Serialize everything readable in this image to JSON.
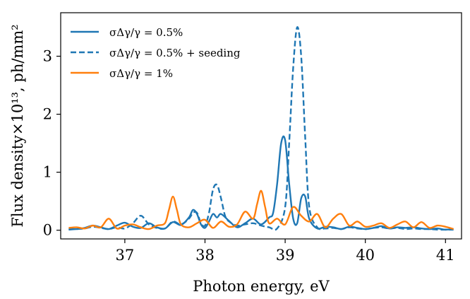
{
  "chart_data": {
    "type": "line",
    "title": "",
    "xlabel": "Photon energy, eV",
    "ylabel": "Flux density×10¹³, ph/mm²",
    "xlim": [
      36.2,
      41.2
    ],
    "ylim": [
      -0.15,
      3.75
    ],
    "xticks": [
      37,
      38,
      39,
      40,
      41
    ],
    "yticks": [
      0,
      1,
      2,
      3
    ],
    "xtick_labels": [
      "37",
      "38",
      "39",
      "40",
      "41"
    ],
    "ytick_labels": [
      "0",
      "1",
      "2",
      "3"
    ],
    "grid": false,
    "legend_position": "top-left",
    "series": [
      {
        "name": "σΔγ/γ = 0.5%",
        "color": "#1f77b4",
        "style": "solid",
        "x": [
          36.3,
          36.4,
          36.5,
          36.6,
          36.7,
          36.8,
          36.9,
          37.0,
          37.1,
          37.2,
          37.3,
          37.4,
          37.5,
          37.6,
          37.7,
          37.8,
          37.85,
          37.9,
          37.95,
          38.0,
          38.05,
          38.1,
          38.15,
          38.2,
          38.3,
          38.4,
          38.5,
          38.6,
          38.7,
          38.8,
          38.85,
          38.9,
          38.95,
          39.0,
          39.05,
          39.1,
          39.15,
          39.2,
          39.25,
          39.3,
          39.4,
          39.5,
          39.6,
          39.7,
          39.8,
          39.9,
          40.0,
          40.1,
          40.2,
          40.3,
          40.4,
          40.5,
          40.6,
          40.7,
          40.8,
          40.9,
          41.0,
          41.1
        ],
        "y": [
          0.02,
          0.02,
          0.04,
          0.08,
          0.05,
          0.02,
          0.08,
          0.13,
          0.06,
          0.04,
          0.12,
          0.05,
          0.03,
          0.14,
          0.09,
          0.22,
          0.35,
          0.28,
          0.1,
          0.04,
          0.15,
          0.28,
          0.22,
          0.28,
          0.16,
          0.05,
          0.12,
          0.2,
          0.1,
          0.22,
          0.3,
          0.8,
          1.5,
          1.55,
          0.8,
          0.2,
          0.12,
          0.55,
          0.58,
          0.2,
          0.03,
          0.06,
          0.05,
          0.02,
          0.06,
          0.04,
          0.02,
          0.04,
          0.07,
          0.03,
          0.05,
          0.04,
          0.05,
          0.03,
          0.02,
          0.03,
          0.01,
          0.02
        ]
      },
      {
        "name": "σΔγ/γ = 0.5% + seeding",
        "color": "#1f77b4",
        "style": "dashed",
        "x": [
          36.3,
          36.4,
          36.5,
          36.6,
          36.7,
          36.8,
          36.9,
          37.0,
          37.1,
          37.2,
          37.3,
          37.4,
          37.5,
          37.6,
          37.7,
          37.8,
          37.85,
          37.9,
          37.95,
          38.0,
          38.05,
          38.1,
          38.15,
          38.2,
          38.25,
          38.3,
          38.4,
          38.5,
          38.6,
          38.7,
          38.8,
          38.9,
          39.0,
          39.05,
          39.1,
          39.15,
          39.2,
          39.25,
          39.3,
          39.4,
          39.5,
          39.6,
          39.7,
          39.8,
          39.9,
          40.0,
          40.1,
          40.2,
          40.3,
          40.4,
          40.5,
          40.6,
          40.7,
          40.8,
          40.9,
          41.0,
          41.1
        ],
        "y": [
          0.01,
          0.02,
          0.03,
          0.06,
          0.04,
          0.02,
          0.05,
          0.03,
          0.12,
          0.25,
          0.1,
          0.04,
          0.03,
          0.15,
          0.1,
          0.2,
          0.3,
          0.3,
          0.12,
          0.08,
          0.3,
          0.7,
          0.78,
          0.55,
          0.25,
          0.15,
          0.08,
          0.1,
          0.12,
          0.08,
          0.05,
          0.03,
          0.4,
          1.5,
          2.8,
          3.5,
          3.0,
          1.6,
          0.4,
          0.05,
          0.03,
          0.04,
          0.02,
          0.05,
          0.03,
          0.02,
          0.04,
          0.05,
          0.03,
          0.04,
          0.02,
          0.03,
          0.02,
          0.02,
          0.01,
          0.01,
          0.01
        ]
      },
      {
        "name": "σΔγ/γ = 1%",
        "color": "#ff7f0e",
        "style": "solid",
        "x": [
          36.3,
          36.4,
          36.5,
          36.6,
          36.7,
          36.8,
          36.9,
          37.0,
          37.1,
          37.2,
          37.3,
          37.4,
          37.5,
          37.55,
          37.6,
          37.65,
          37.7,
          37.8,
          37.9,
          38.0,
          38.1,
          38.2,
          38.3,
          38.4,
          38.5,
          38.6,
          38.65,
          38.7,
          38.75,
          38.8,
          38.9,
          39.0,
          39.1,
          39.2,
          39.3,
          39.4,
          39.5,
          39.6,
          39.7,
          39.8,
          39.9,
          40.0,
          40.1,
          40.2,
          40.3,
          40.4,
          40.5,
          40.6,
          40.7,
          40.8,
          40.9,
          41.0,
          41.1
        ],
        "y": [
          0.04,
          0.05,
          0.03,
          0.08,
          0.05,
          0.2,
          0.03,
          0.08,
          0.1,
          0.05,
          0.02,
          0.08,
          0.12,
          0.35,
          0.58,
          0.35,
          0.1,
          0.05,
          0.12,
          0.18,
          0.04,
          0.15,
          0.06,
          0.1,
          0.32,
          0.2,
          0.45,
          0.68,
          0.4,
          0.12,
          0.2,
          0.1,
          0.4,
          0.25,
          0.15,
          0.28,
          0.05,
          0.2,
          0.28,
          0.08,
          0.15,
          0.06,
          0.08,
          0.12,
          0.04,
          0.1,
          0.15,
          0.05,
          0.14,
          0.04,
          0.08,
          0.06,
          0.02
        ]
      }
    ]
  }
}
